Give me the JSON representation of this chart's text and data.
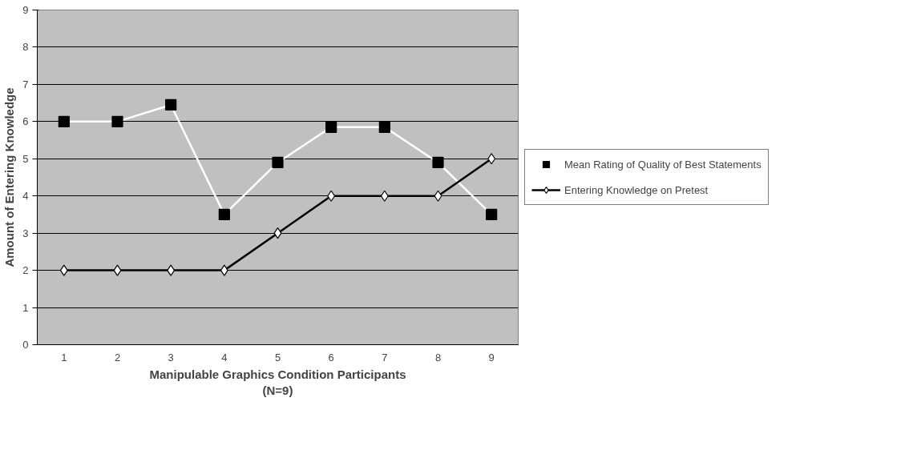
{
  "chart_data": {
    "type": "line",
    "xlabel": "Manipulable Graphics Condition Participants\n(N=9)",
    "ylabel": "Amount of Entering Knowledge",
    "categories": [
      "1",
      "2",
      "3",
      "4",
      "5",
      "6",
      "7",
      "8",
      "9"
    ],
    "series": [
      {
        "name": "Mean Rating of Quality of Best Statements",
        "color": "#ffffff",
        "marker": "square",
        "values": [
          6,
          6,
          6.45,
          3.5,
          4.9,
          5.85,
          5.85,
          4.9,
          3.5
        ]
      },
      {
        "name": "Entering Knowledge on Pretest",
        "color": "#000000",
        "marker": "diamond",
        "values": [
          2,
          2,
          2,
          2,
          3,
          4,
          4,
          4,
          5
        ]
      }
    ],
    "ylim": [
      0,
      9
    ],
    "yticks": [
      0,
      1,
      2,
      3,
      4,
      5,
      6,
      7,
      8,
      9
    ],
    "grid": "y",
    "legend": "right"
  }
}
